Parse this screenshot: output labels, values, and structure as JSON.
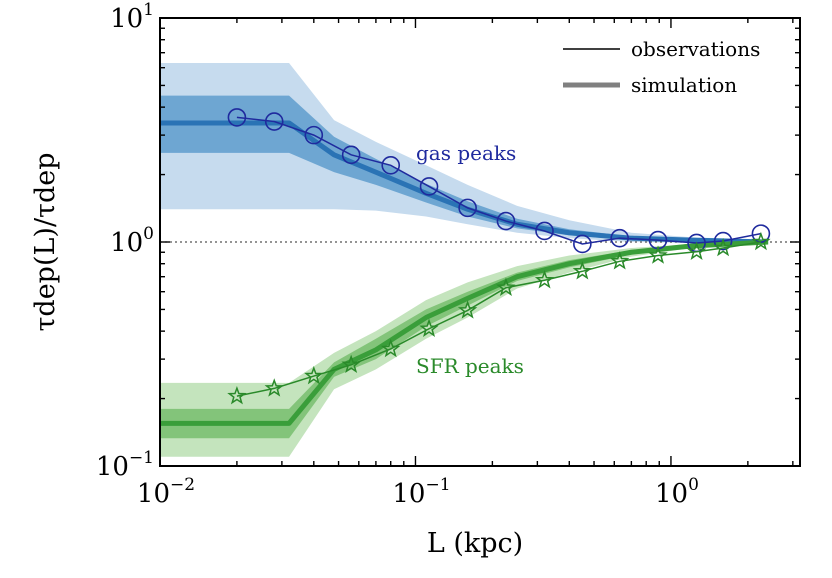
{
  "chart_data": {
    "type": "line",
    "xscale": "log",
    "yscale": "log",
    "xlim": [
      0.01,
      3.2
    ],
    "ylim": [
      0.1,
      10
    ],
    "xlabel": "L (kpc)",
    "ylabel": "τdep(L)/τdep",
    "x_ticks": [
      {
        "base": "10",
        "exp": "−2",
        "value": 0.01
      },
      {
        "base": "10",
        "exp": "−1",
        "value": 0.1
      },
      {
        "base": "10",
        "exp": "0",
        "value": 1
      }
    ],
    "y_ticks": [
      {
        "base": "10",
        "exp": "−1",
        "value": 0.1
      },
      {
        "base": "10",
        "exp": "0",
        "value": 1
      },
      {
        "base": "10",
        "exp": "1",
        "value": 10
      }
    ],
    "reference_line": {
      "y": 1,
      "style": "dotted"
    },
    "legend": [
      {
        "label": "observations",
        "style": "thin line"
      },
      {
        "label": "simulation",
        "style": "thick line"
      }
    ],
    "annotations": [
      {
        "text": "gas peaks",
        "color": "#1f2a9e"
      },
      {
        "text": "SFR peaks",
        "color": "#2a8a2a"
      }
    ],
    "series": [
      {
        "name": "gas peaks observations",
        "kind": "observations",
        "marker": "circle",
        "color": "#1f2a9e",
        "x": [
          0.02,
          0.028,
          0.04,
          0.056,
          0.08,
          0.113,
          0.16,
          0.226,
          0.32,
          0.45,
          0.63,
          0.89,
          1.26,
          1.6,
          2.25
        ],
        "y": [
          3.6,
          3.45,
          3.0,
          2.45,
          2.2,
          1.77,
          1.42,
          1.24,
          1.12,
          0.98,
          1.04,
          1.02,
          0.99,
          1.01,
          1.09
        ]
      },
      {
        "name": "gas peaks simulation",
        "kind": "simulation",
        "color": "#2a73b5",
        "x": [
          0.01,
          0.032,
          0.048,
          0.07,
          0.11,
          0.16,
          0.25,
          0.4,
          0.7,
          1.2,
          2.4
        ],
        "y": [
          3.4,
          3.4,
          2.45,
          2.05,
          1.65,
          1.4,
          1.2,
          1.1,
          1.04,
          1.02,
          1.0
        ],
        "band_inner": {
          "low": [
            2.5,
            2.5,
            2.05,
            1.8,
            1.5,
            1.3,
            1.15,
            1.07,
            1.02,
            1.01,
            1.0
          ],
          "high": [
            4.5,
            4.5,
            2.95,
            2.35,
            1.82,
            1.52,
            1.27,
            1.14,
            1.06,
            1.03,
            1.01
          ]
        },
        "band_outer": {
          "low": [
            1.4,
            1.4,
            1.4,
            1.38,
            1.3,
            1.2,
            1.1,
            1.04,
            1.0,
            0.99,
            0.99
          ],
          "high": [
            6.3,
            6.3,
            3.5,
            2.8,
            2.2,
            1.8,
            1.45,
            1.25,
            1.1,
            1.05,
            1.02
          ]
        }
      },
      {
        "name": "SFR peaks observations",
        "kind": "observations",
        "marker": "star",
        "color": "#2a8a2a",
        "x": [
          0.02,
          0.028,
          0.04,
          0.056,
          0.08,
          0.113,
          0.16,
          0.226,
          0.32,
          0.45,
          0.63,
          0.89,
          1.26,
          1.6,
          2.25
        ],
        "y": [
          0.205,
          0.222,
          0.252,
          0.283,
          0.333,
          0.41,
          0.495,
          0.625,
          0.675,
          0.74,
          0.82,
          0.87,
          0.905,
          0.94,
          1.0
        ]
      },
      {
        "name": "SFR peaks simulation",
        "kind": "simulation",
        "color": "#3a9e3a",
        "x": [
          0.01,
          0.032,
          0.048,
          0.07,
          0.11,
          0.16,
          0.25,
          0.4,
          0.7,
          1.2,
          2.4
        ],
        "y": [
          0.155,
          0.155,
          0.27,
          0.33,
          0.46,
          0.56,
          0.7,
          0.8,
          0.9,
          0.96,
          1.0
        ],
        "band_inner": {
          "low": [
            0.133,
            0.133,
            0.25,
            0.3,
            0.42,
            0.52,
            0.67,
            0.77,
            0.88,
            0.95,
            0.99
          ],
          "high": [
            0.18,
            0.18,
            0.29,
            0.37,
            0.5,
            0.6,
            0.73,
            0.83,
            0.92,
            0.97,
            1.0
          ]
        },
        "band_outer": {
          "low": [
            0.11,
            0.11,
            0.22,
            0.27,
            0.37,
            0.46,
            0.62,
            0.73,
            0.86,
            0.94,
            0.98
          ],
          "high": [
            0.235,
            0.235,
            0.32,
            0.4,
            0.55,
            0.66,
            0.78,
            0.87,
            0.94,
            0.98,
            1.01
          ]
        }
      }
    ]
  }
}
